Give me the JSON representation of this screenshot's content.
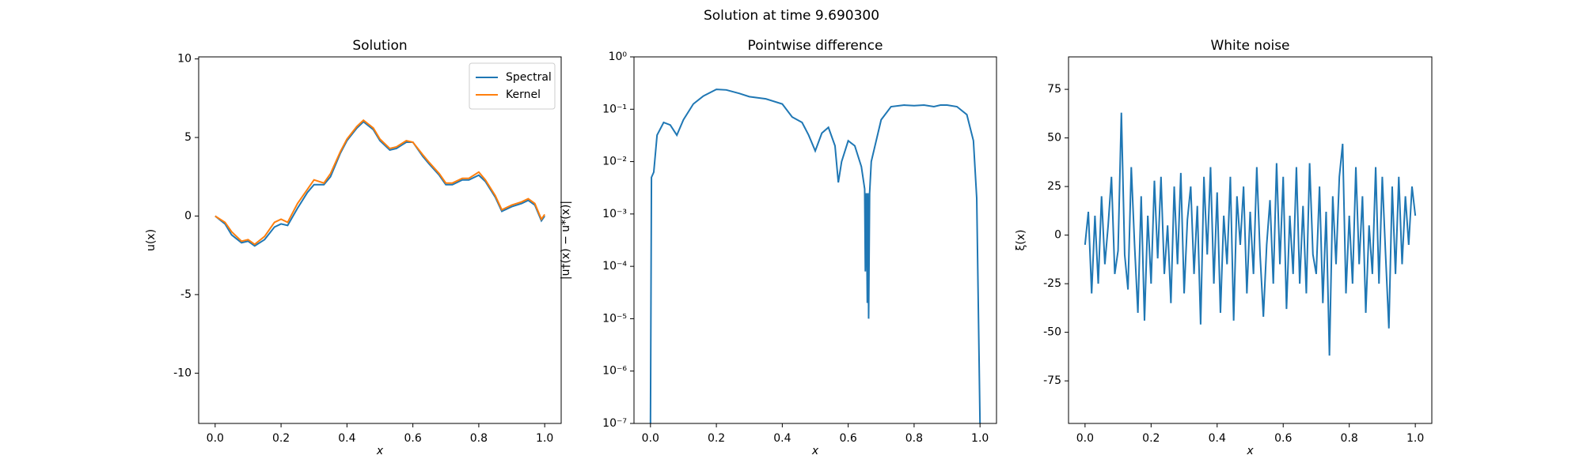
{
  "title": "Solution at time 9.690300",
  "chart_data": [
    {
      "type": "line",
      "title": "Solution",
      "x_label": "x",
      "y_label": "u(x)",
      "legend": "upper right",
      "xlim": [
        -0.05,
        1.05
      ],
      "ylim": [
        -13.2,
        10.13
      ],
      "xticks": [
        {
          "value": 0,
          "label": "0.0"
        },
        0.2,
        0.4,
        0.6,
        0.8,
        {
          "value": 1,
          "label": "1.0"
        }
      ],
      "yticks": [
        -10,
        -5,
        0,
        5,
        10
      ],
      "x": [
        0,
        0.03,
        0.05,
        0.08,
        0.1,
        0.12,
        0.15,
        0.18,
        0.2,
        0.22,
        0.25,
        0.28,
        0.3,
        0.33,
        0.35,
        0.38,
        0.4,
        0.43,
        0.45,
        0.48,
        0.5,
        0.53,
        0.55,
        0.58,
        0.6,
        0.63,
        0.65,
        0.68,
        0.7,
        0.72,
        0.75,
        0.77,
        0.8,
        0.82,
        0.85,
        0.87,
        0.9,
        0.93,
        0.95,
        0.97,
        0.99,
        1.0
      ],
      "series": [
        {
          "name": "Spectral",
          "color": "#1f77b4",
          "values": [
            0,
            -0.5,
            -1.2,
            -1.7,
            -1.6,
            -1.9,
            -1.5,
            -0.7,
            -0.5,
            -0.6,
            0.5,
            1.5,
            2.0,
            2.0,
            2.5,
            4.0,
            4.8,
            5.6,
            6.0,
            5.5,
            4.8,
            4.2,
            4.3,
            4.7,
            4.7,
            3.8,
            3.3,
            2.6,
            2.0,
            2.0,
            2.3,
            2.3,
            2.6,
            2.2,
            1.2,
            0.3,
            0.6,
            0.8,
            1.0,
            0.7,
            -0.3,
            0
          ]
        },
        {
          "name": "Kernel",
          "color": "#ff7f0e",
          "values": [
            0,
            -0.4,
            -1.0,
            -1.6,
            -1.5,
            -1.8,
            -1.3,
            -0.4,
            -0.2,
            -0.4,
            0.8,
            1.7,
            2.3,
            2.1,
            2.7,
            4.1,
            4.9,
            5.7,
            6.1,
            5.6,
            4.9,
            4.3,
            4.4,
            4.8,
            4.7,
            3.9,
            3.4,
            2.7,
            2.1,
            2.1,
            2.4,
            2.4,
            2.8,
            2.3,
            1.3,
            0.4,
            0.7,
            0.9,
            1.1,
            0.8,
            -0.2,
            0.1
          ]
        }
      ]
    },
    {
      "type": "line",
      "title": "Pointwise difference",
      "x_label": "x",
      "y_label": "|u†(x) − u*(x)|",
      "log_y": true,
      "xlim": [
        -0.05,
        1.05
      ],
      "ylim": [
        1e-07,
        1
      ],
      "xticks": [
        {
          "value": 0,
          "label": "0.0"
        },
        0.2,
        0.4,
        0.6,
        0.8,
        {
          "value": 1,
          "label": "1.0"
        }
      ],
      "yticks": [
        {
          "value": 1e-07,
          "label": "10⁻⁷"
        },
        {
          "value": 1e-06,
          "label": "10⁻⁶"
        },
        {
          "value": 1e-05,
          "label": "10⁻⁵"
        },
        {
          "value": 0.0001,
          "label": "10⁻⁴"
        },
        {
          "value": 0.001,
          "label": "10⁻³"
        },
        {
          "value": 0.01,
          "label": "10⁻²"
        },
        {
          "value": 0.1,
          "label": "10⁻¹"
        },
        {
          "value": 1,
          "label": "10⁰"
        }
      ],
      "x": [
        0,
        0.003,
        0.01,
        0.02,
        0.04,
        0.06,
        0.08,
        0.1,
        0.13,
        0.16,
        0.2,
        0.23,
        0.27,
        0.3,
        0.35,
        0.4,
        0.43,
        0.46,
        0.48,
        0.5,
        0.52,
        0.54,
        0.56,
        0.57,
        0.58,
        0.6,
        0.62,
        0.64,
        0.65,
        0.652,
        0.655,
        0.658,
        0.66,
        0.662,
        0.665,
        0.67,
        0.7,
        0.73,
        0.77,
        0.8,
        0.83,
        0.86,
        0.88,
        0.9,
        0.93,
        0.96,
        0.98,
        0.99,
        1.0
      ],
      "series": [
        {
          "color": "#1f77b4",
          "values": [
            1e-07,
            0.005,
            0.0063,
            0.032,
            0.056,
            0.05,
            0.032,
            0.063,
            0.126,
            0.178,
            0.24,
            0.234,
            0.2,
            0.174,
            0.158,
            0.126,
            0.071,
            0.056,
            0.032,
            0.016,
            0.035,
            0.045,
            0.02,
            0.004,
            0.01,
            0.025,
            0.02,
            0.008,
            0.003,
            8e-05,
            0.0025,
            2e-05,
            0.0025,
            1e-05,
            0.0025,
            0.01,
            0.063,
            0.112,
            0.12,
            0.117,
            0.12,
            0.112,
            0.12,
            0.12,
            0.112,
            0.079,
            0.025,
            0.002,
            1e-07
          ]
        }
      ]
    },
    {
      "type": "line",
      "title": "White noise",
      "x_label": "x",
      "y_label": "ξ(x)",
      "xlim": [
        -0.05,
        1.05
      ],
      "ylim": [
        -96.9,
        91.7
      ],
      "xticks": [
        {
          "value": 0,
          "label": "0.0"
        },
        0.2,
        0.4,
        0.6,
        0.8,
        {
          "value": 1,
          "label": "1.0"
        }
      ],
      "yticks": [
        -75,
        -50,
        -25,
        0,
        25,
        50,
        75
      ],
      "x": [
        0,
        0.01,
        0.02,
        0.03,
        0.04,
        0.05,
        0.06,
        0.07,
        0.08,
        0.09,
        0.1,
        0.11,
        0.12,
        0.13,
        0.14,
        0.15,
        0.16,
        0.17,
        0.18,
        0.19,
        0.2,
        0.21,
        0.22,
        0.23,
        0.24,
        0.25,
        0.26,
        0.27,
        0.28,
        0.29,
        0.3,
        0.31,
        0.32,
        0.33,
        0.34,
        0.35,
        0.36,
        0.37,
        0.38,
        0.39,
        0.4,
        0.41,
        0.42,
        0.43,
        0.44,
        0.45,
        0.46,
        0.47,
        0.48,
        0.49,
        0.5,
        0.51,
        0.52,
        0.53,
        0.54,
        0.55,
        0.56,
        0.57,
        0.58,
        0.59,
        0.6,
        0.61,
        0.62,
        0.63,
        0.64,
        0.65,
        0.66,
        0.67,
        0.68,
        0.69,
        0.7,
        0.71,
        0.72,
        0.73,
        0.74,
        0.75,
        0.76,
        0.77,
        0.78,
        0.79,
        0.8,
        0.81,
        0.82,
        0.83,
        0.84,
        0.85,
        0.86,
        0.87,
        0.88,
        0.89,
        0.9,
        0.91,
        0.92,
        0.93,
        0.94,
        0.95,
        0.96,
        0.97,
        0.98,
        0.99,
        1.0
      ],
      "series": [
        {
          "color": "#1f77b4",
          "values": [
            -5,
            12,
            -30,
            10,
            -25,
            20,
            -15,
            5,
            30,
            -20,
            -8,
            63,
            -10,
            -28,
            35,
            -5,
            -40,
            20,
            -44,
            10,
            -25,
            28,
            -12,
            30,
            -20,
            5,
            -35,
            25,
            -15,
            32,
            -30,
            8,
            25,
            -20,
            15,
            -46,
            30,
            -10,
            35,
            -25,
            22,
            -40,
            10,
            -15,
            30,
            -44,
            20,
            -5,
            25,
            -30,
            12,
            -20,
            35,
            -10,
            -42,
            -5,
            18,
            -25,
            37,
            -15,
            30,
            -38,
            10,
            -20,
            35,
            -25,
            15,
            -30,
            37,
            -10,
            -20,
            25,
            -35,
            12,
            -62,
            20,
            -15,
            30,
            47,
            -30,
            10,
            -25,
            35,
            -15,
            20,
            -40,
            5,
            -20,
            35,
            -25,
            30,
            -10,
            -48,
            25,
            -20,
            30,
            -15,
            20,
            -5,
            25,
            10
          ]
        }
      ]
    }
  ]
}
